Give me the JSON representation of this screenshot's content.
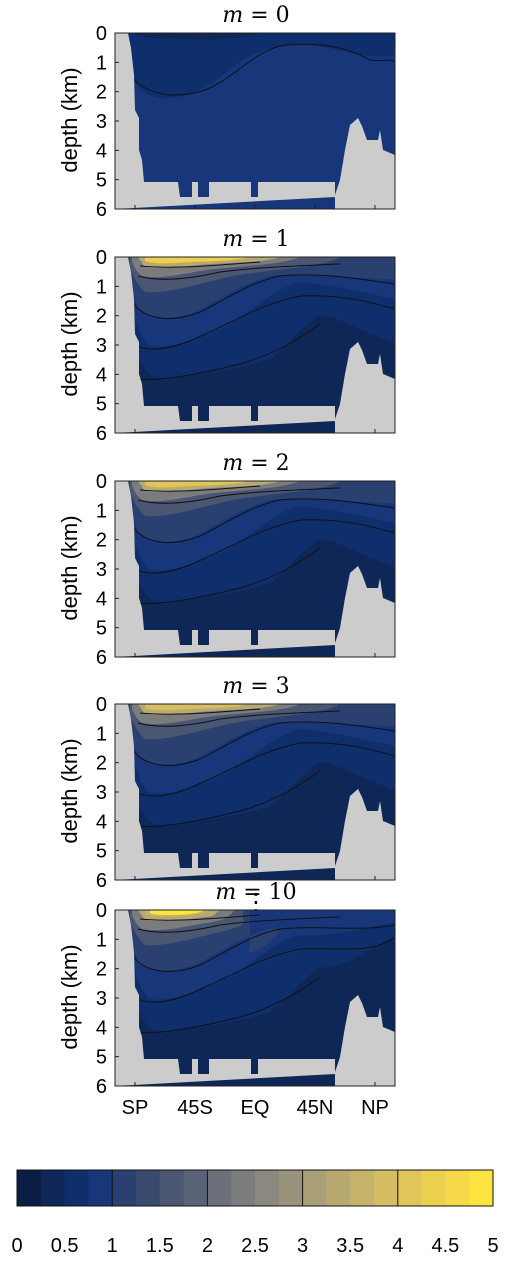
{
  "chart_data": {
    "type": "heatmap",
    "panels": [
      {
        "title_var": "m",
        "title_eq": "=",
        "title_val": "0",
        "level": 0
      },
      {
        "title_var": "m",
        "title_eq": "=",
        "title_val": "1",
        "level": 1
      },
      {
        "title_var": "m",
        "title_eq": "=",
        "title_val": "2",
        "level": 2
      },
      {
        "title_var": "m",
        "title_eq": "=",
        "title_val": "3",
        "level": 3
      },
      {
        "title_var": "m",
        "title_eq": "=",
        "title_val": "10",
        "level": 10
      }
    ],
    "ellipsis": "⋮",
    "ylabel": "depth (km)",
    "yticks": [
      "0",
      "1",
      "2",
      "3",
      "4",
      "5",
      "6"
    ],
    "ylim": [
      0,
      6
    ],
    "xticks": [
      "SP",
      "45S",
      "EQ",
      "45N",
      "NP"
    ],
    "colorbar": {
      "ticks": [
        "0",
        "0.5",
        "1",
        "1.5",
        "2",
        "2.5",
        "3",
        "3.5",
        "4",
        "4.5",
        "5"
      ],
      "range": [
        0,
        5
      ],
      "levels": 20,
      "colors": [
        "#0b1d45",
        "#0f2757",
        "#0e2e6c",
        "#17377a",
        "#2a4070",
        "#3a4a6f",
        "#4b5672",
        "#5b6378",
        "#6b707b",
        "#7a7c7e",
        "#8a887f",
        "#99937c",
        "#a99f77",
        "#b8a971",
        "#c6b46b",
        "#d4bd62",
        "#e0c659",
        "#ecd04f",
        "#f5d948",
        "#fde441"
      ]
    },
    "land_color": "#cccccc"
  }
}
